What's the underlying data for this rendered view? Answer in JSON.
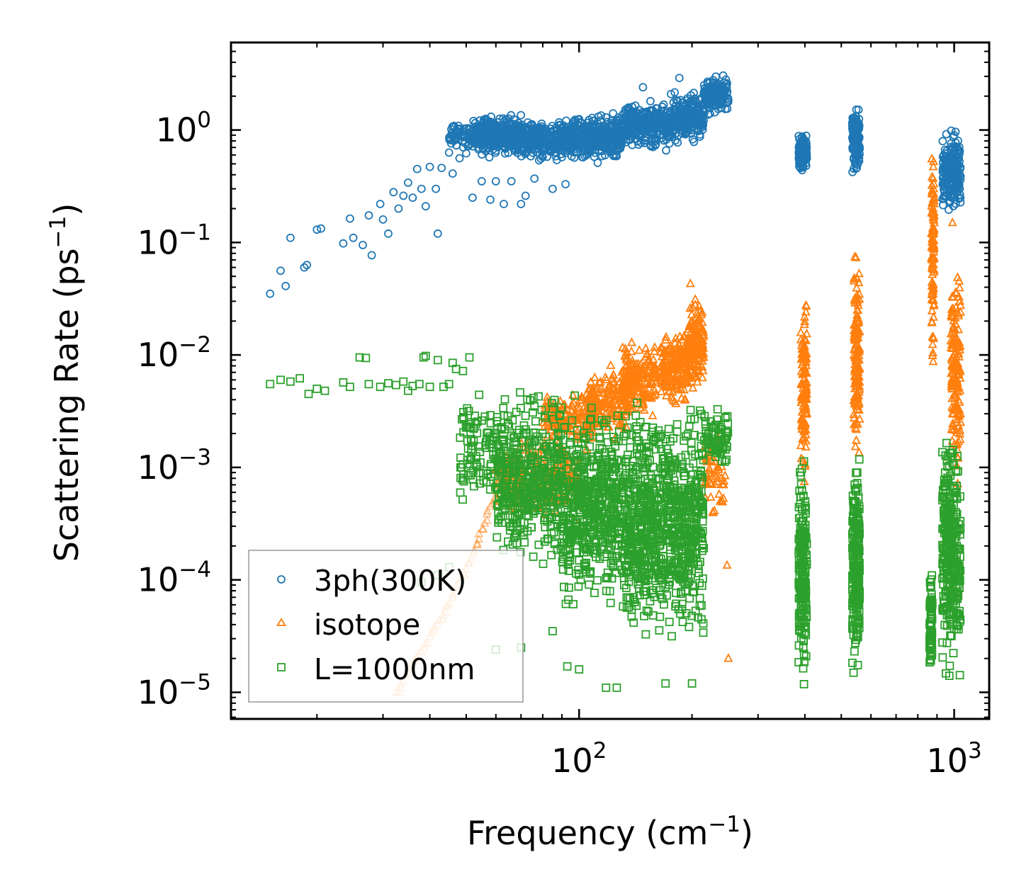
{
  "chart_data": {
    "type": "scatter",
    "title": "",
    "xlabel": {
      "base": "Frequency (cm",
      "exp": "−1",
      "close": ")"
    },
    "ylabel": {
      "base": "Scattering Rate (ps",
      "exp": "−1",
      "close": ")"
    },
    "xscale": "log",
    "yscale": "log",
    "xlim": [
      11.8,
      1240
    ],
    "ylim": [
      5.8e-06,
      6.0
    ],
    "x_ticks": [
      {
        "value": 100,
        "base": "10",
        "exp": "2"
      },
      {
        "value": 1000,
        "base": "10",
        "exp": "3"
      }
    ],
    "y_ticks": [
      {
        "value": 1,
        "base": "10",
        "exp": "0"
      },
      {
        "value": 0.1,
        "base": "10",
        "exp": "−1"
      },
      {
        "value": 0.01,
        "base": "10",
        "exp": "−2"
      },
      {
        "value": 0.001,
        "base": "10",
        "exp": "−3"
      },
      {
        "value": 0.0001,
        "base": "10",
        "exp": "−4"
      },
      {
        "value": 1e-05,
        "base": "10",
        "exp": "−5"
      }
    ],
    "legend": {
      "placement": "lower-left"
    },
    "series": [
      {
        "name": "3ph(300K)",
        "marker": "circle",
        "color": "#1f77b4",
        "points": [
          [
            15.0,
            0.035
          ],
          [
            16.0,
            0.056
          ],
          [
            16.5,
            0.041
          ],
          [
            17.0,
            0.11
          ],
          [
            18.5,
            0.06
          ],
          [
            18.8,
            0.063
          ],
          [
            20.0,
            0.13
          ],
          [
            20.5,
            0.133
          ],
          [
            23.5,
            0.098
          ],
          [
            24.5,
            0.163
          ],
          [
            25.0,
            0.11
          ],
          [
            26.5,
            0.095
          ],
          [
            27.5,
            0.174
          ],
          [
            28.0,
            0.077
          ],
          [
            29.5,
            0.22
          ],
          [
            30.0,
            0.16
          ],
          [
            31.0,
            0.12
          ],
          [
            32.0,
            0.28
          ],
          [
            33.0,
            0.2
          ],
          [
            34.0,
            0.26
          ],
          [
            35.0,
            0.34
          ],
          [
            36.0,
            0.25
          ],
          [
            37.0,
            0.45
          ],
          [
            38.0,
            0.3
          ],
          [
            39.0,
            0.21
          ],
          [
            40.0,
            0.47
          ],
          [
            41.5,
            0.3
          ],
          [
            42.0,
            0.12
          ],
          [
            43.0,
            0.46
          ],
          [
            45.0,
            0.63
          ],
          [
            46.0,
            0.41
          ],
          [
            48.0,
            0.56
          ],
          [
            50.0,
            0.62
          ],
          [
            52.0,
            0.25
          ],
          [
            55.0,
            0.35
          ],
          [
            58.0,
            0.24
          ]
        ],
        "clusters": [
          {
            "x": [
              45,
              52
            ],
            "y": [
              0.6,
              1.3
            ],
            "n": 60
          },
          {
            "x": [
              52,
              70
            ],
            "y": [
              0.55,
              1.45
            ],
            "n": 380
          },
          {
            "x": [
              70,
              95
            ],
            "y": [
              0.5,
              1.35
            ],
            "n": 320
          },
          {
            "x": [
              95,
              130
            ],
            "y": [
              0.48,
              1.55
            ],
            "n": 320
          },
          {
            "x": [
              130,
              175
            ],
            "y": [
              0.6,
              2.0
            ],
            "n": 280
          },
          {
            "x": [
              175,
              215
            ],
            "y": [
              0.7,
              2.4
            ],
            "n": 200
          },
          {
            "x": [
              215,
              250
            ],
            "y": [
              1.3,
              3.2
            ],
            "n": 140
          },
          {
            "x": [
              385,
              405
            ],
            "y": [
              0.4,
              1.0
            ],
            "n": 120
          },
          {
            "x": [
              535,
              560
            ],
            "y": [
              0.37,
              1.65
            ],
            "n": 140
          },
          {
            "x": [
              930,
              1040
            ],
            "y": [
              0.15,
              1.15
            ],
            "n": 200
          }
        ],
        "outliers": [
          [
            60,
            0.35
          ],
          [
            63,
            0.22
          ],
          [
            66,
            0.35
          ],
          [
            70,
            0.22
          ],
          [
            72,
            0.26
          ],
          [
            76,
            0.37
          ],
          [
            85,
            0.3
          ],
          [
            92,
            0.33
          ],
          [
            185,
            2.9
          ],
          [
            148,
            2.4
          ]
        ]
      },
      {
        "name": "isotope",
        "marker": "triangle",
        "color": "#ff7f0e",
        "curve": [
          [
            32.5,
            1e-05
          ],
          [
            34.0,
            1.25e-05
          ],
          [
            36.0,
            1.75e-05
          ],
          [
            38.0,
            2.3e-05
          ],
          [
            40.0,
            3.1e-05
          ],
          [
            42.0,
            4e-05
          ],
          [
            44.0,
            5.2e-05
          ],
          [
            46.0,
            6.9e-05
          ],
          [
            48.0,
            9.2e-05
          ],
          [
            50.0,
            0.000125
          ],
          [
            52.0,
            0.00017
          ],
          [
            54.0,
            0.00023
          ],
          [
            56.0,
            0.00032
          ],
          [
            58.0,
            0.00045
          ],
          [
            60.0,
            0.00062
          ],
          [
            62.0,
            0.00075
          ]
        ],
        "clusters": [
          {
            "x": [
              60,
              100
            ],
            "y": [
              0.0003,
              0.002
            ],
            "n": 260
          },
          {
            "x": [
              80,
              110
            ],
            "y": [
              0.0012,
              0.006
            ],
            "n": 150
          },
          {
            "x": [
              105,
              135
            ],
            "y": [
              0.0015,
              0.009
            ],
            "n": 160
          },
          {
            "x": [
              130,
              160
            ],
            "y": [
              0.0025,
              0.015
            ],
            "n": 180
          },
          {
            "x": [
              165,
              195
            ],
            "y": [
              0.003,
              0.02
            ],
            "n": 180
          },
          {
            "x": [
              195,
              215
            ],
            "y": [
              0.004,
              0.04
            ],
            "n": 160
          },
          {
            "x": [
              215,
              245
            ],
            "y": [
              0.0003,
              0.003
            ],
            "n": 60
          },
          {
            "x": [
              390,
              405
            ],
            "y": [
              0.0004,
              0.05
            ],
            "n": 120
          },
          {
            "x": [
              540,
              560
            ],
            "y": [
              0.0006,
              0.12
            ],
            "n": 140
          },
          {
            "x": [
              870,
              885
            ],
            "y": [
              0.005,
              2.0
            ],
            "n": 100
          },
          {
            "x": [
              980,
              1040
            ],
            "y": [
              0.0005,
              0.12
            ],
            "n": 160
          }
        ],
        "outliers": [
          [
            248,
            0.000135
          ],
          [
            250,
            2e-05
          ],
          [
            198,
            0.043
          ],
          [
            395,
            0.00015
          ],
          [
            885,
            0.25
          ],
          [
            990,
            0.15
          ]
        ]
      },
      {
        "name": "L=1000nm",
        "marker": "square",
        "color": "#2ca02c",
        "points": [
          [
            15.0,
            0.0055
          ],
          [
            16.0,
            0.006
          ],
          [
            17.0,
            0.0058
          ],
          [
            18.0,
            0.0062
          ],
          [
            19.0,
            0.0045
          ],
          [
            20.0,
            0.005
          ],
          [
            21.0,
            0.0048
          ],
          [
            23.5,
            0.0057
          ],
          [
            24.5,
            0.0052
          ],
          [
            26.0,
            0.0095
          ],
          [
            27.0,
            0.0094
          ],
          [
            27.5,
            0.0055
          ],
          [
            29.5,
            0.0052
          ],
          [
            31.0,
            0.0056
          ],
          [
            32.5,
            0.0054
          ],
          [
            34.0,
            0.0058
          ],
          [
            35.0,
            0.0048
          ],
          [
            36.0,
            0.0053
          ],
          [
            37.5,
            0.0055
          ],
          [
            38.5,
            0.0095
          ],
          [
            39.0,
            0.0098
          ],
          [
            40.0,
            0.0052
          ],
          [
            42.0,
            0.009
          ],
          [
            43.5,
            0.0052
          ],
          [
            45.0,
            0.0055
          ],
          [
            46.0,
            0.0085
          ],
          [
            47.0,
            0.0075
          ],
          [
            49.0,
            0.0072
          ],
          [
            51.0,
            0.0095
          ]
        ],
        "clusters": [
          {
            "x": [
              48,
              60
            ],
            "y": [
              0.0004,
              0.0055
            ],
            "n": 90
          },
          {
            "x": [
              60,
              90
            ],
            "y": [
              0.0001,
              0.006
            ],
            "n": 450
          },
          {
            "x": [
              90,
              130
            ],
            "y": [
              4e-05,
              0.0055
            ],
            "n": 500
          },
          {
            "x": [
              130,
              175
            ],
            "y": [
              2e-05,
              0.005
            ],
            "n": 520
          },
          {
            "x": [
              175,
              215
            ],
            "y": [
              2e-05,
              0.0045
            ],
            "n": 340
          },
          {
            "x": [
              215,
              250
            ],
            "y": [
              0.0008,
              0.004
            ],
            "n": 80
          },
          {
            "x": [
              385,
              405
            ],
            "y": [
              1e-05,
              0.0016
            ],
            "n": 200
          },
          {
            "x": [
              535,
              560
            ],
            "y": [
              1e-05,
              0.0018
            ],
            "n": 220
          },
          {
            "x": [
              860,
              875
            ],
            "y": [
              1e-05,
              0.00017
            ],
            "n": 70
          },
          {
            "x": [
              930,
              1040
            ],
            "y": [
              1e-05,
              0.0035
            ],
            "n": 320
          }
        ],
        "outliers": [
          [
            38,
            9.5e-05
          ],
          [
            42,
            0.00011
          ],
          [
            45,
            0.00013
          ],
          [
            60,
            2.4e-05
          ],
          [
            70,
            2.5e-05
          ],
          [
            85,
            3.5e-05
          ],
          [
            93,
            1.7e-05
          ],
          [
            100,
            1.6e-05
          ],
          [
            118,
            1.1e-05
          ],
          [
            126,
            1.1e-05
          ],
          [
            170,
            1.2e-05
          ],
          [
            200,
            1.2e-05
          ]
        ]
      }
    ]
  }
}
